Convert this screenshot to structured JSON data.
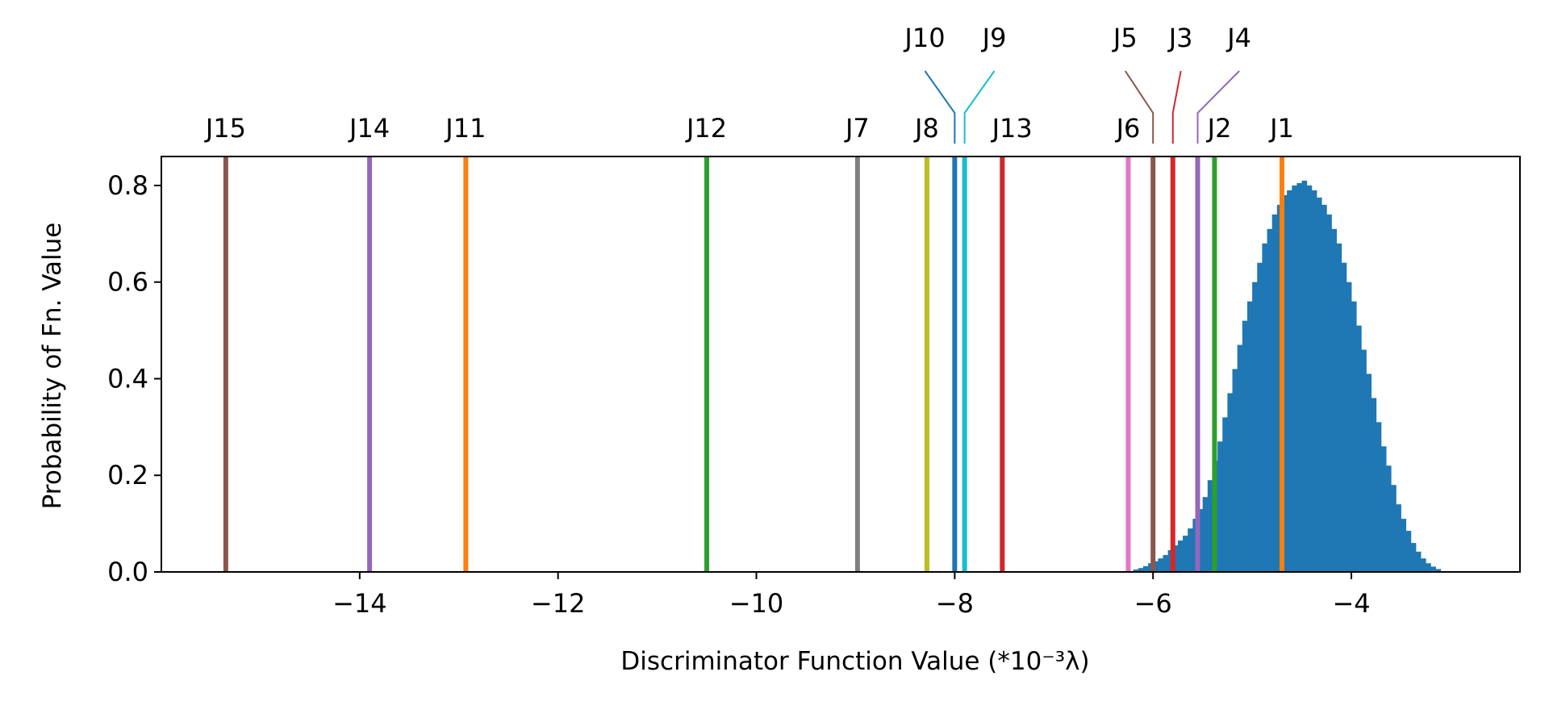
{
  "chart_data": {
    "type": "bar",
    "xlabel": "Discriminator Function Value  (*10⁻³λ)",
    "ylabel": "Probability of Fn. Value",
    "xlim": [
      -16.0,
      -2.3
    ],
    "ylim": [
      0.0,
      0.86
    ],
    "xticks": [
      -14,
      -12,
      -10,
      -8,
      -6,
      -4
    ],
    "xtick_labels": [
      "−14",
      "−12",
      "−10",
      "−8",
      "−6",
      "−4"
    ],
    "yticks": [
      0.0,
      0.2,
      0.4,
      0.6,
      0.8
    ],
    "ytick_labels": [
      "0.0",
      "0.2",
      "0.4",
      "0.6",
      "0.8"
    ],
    "grid": false,
    "histogram": {
      "color": "#1f77b4",
      "bin_width": 0.05,
      "bins": [
        [
          -6.2,
          0.005
        ],
        [
          -6.15,
          0.008
        ],
        [
          -6.1,
          0.012
        ],
        [
          -6.05,
          0.018
        ],
        [
          -6.0,
          0.022
        ],
        [
          -5.95,
          0.028
        ],
        [
          -5.9,
          0.035
        ],
        [
          -5.85,
          0.045
        ],
        [
          -5.8,
          0.055
        ],
        [
          -5.75,
          0.065
        ],
        [
          -5.7,
          0.075
        ],
        [
          -5.65,
          0.09
        ],
        [
          -5.6,
          0.11
        ],
        [
          -5.55,
          0.13
        ],
        [
          -5.5,
          0.155
        ],
        [
          -5.45,
          0.19
        ],
        [
          -5.4,
          0.23
        ],
        [
          -5.35,
          0.27
        ],
        [
          -5.3,
          0.32
        ],
        [
          -5.25,
          0.37
        ],
        [
          -5.2,
          0.42
        ],
        [
          -5.15,
          0.47
        ],
        [
          -5.1,
          0.52
        ],
        [
          -5.05,
          0.56
        ],
        [
          -5.0,
          0.6
        ],
        [
          -4.95,
          0.64
        ],
        [
          -4.9,
          0.68
        ],
        [
          -4.85,
          0.71
        ],
        [
          -4.8,
          0.74
        ],
        [
          -4.75,
          0.76
        ],
        [
          -4.7,
          0.78
        ],
        [
          -4.65,
          0.79
        ],
        [
          -4.6,
          0.8
        ],
        [
          -4.55,
          0.805
        ],
        [
          -4.5,
          0.81
        ],
        [
          -4.45,
          0.8
        ],
        [
          -4.4,
          0.79
        ],
        [
          -4.35,
          0.775
        ],
        [
          -4.3,
          0.76
        ],
        [
          -4.25,
          0.74
        ],
        [
          -4.2,
          0.71
        ],
        [
          -4.15,
          0.68
        ],
        [
          -4.1,
          0.64
        ],
        [
          -4.05,
          0.6
        ],
        [
          -4.0,
          0.56
        ],
        [
          -3.95,
          0.51
        ],
        [
          -3.9,
          0.46
        ],
        [
          -3.85,
          0.41
        ],
        [
          -3.8,
          0.36
        ],
        [
          -3.75,
          0.31
        ],
        [
          -3.7,
          0.26
        ],
        [
          -3.65,
          0.22
        ],
        [
          -3.6,
          0.18
        ],
        [
          -3.55,
          0.14
        ],
        [
          -3.5,
          0.11
        ],
        [
          -3.45,
          0.085
        ],
        [
          -3.4,
          0.06
        ],
        [
          -3.35,
          0.042
        ],
        [
          -3.3,
          0.028
        ],
        [
          -3.25,
          0.018
        ],
        [
          -3.2,
          0.011
        ],
        [
          -3.15,
          0.006
        ]
      ]
    },
    "markers": [
      {
        "label": "J15",
        "x": -15.35,
        "color": "#8c564b",
        "leader": false
      },
      {
        "label": "J14",
        "x": -13.9,
        "color": "#9467bd",
        "leader": false
      },
      {
        "label": "J11",
        "x": -12.93,
        "color": "#ff7f0e",
        "leader": false
      },
      {
        "label": "J12",
        "x": -10.5,
        "color": "#2ca02c",
        "leader": false
      },
      {
        "label": "J7",
        "x": -8.98,
        "color": "#7f7f7f",
        "leader": false
      },
      {
        "label": "J8",
        "x": -8.28,
        "color": "#bcbd22",
        "leader": false
      },
      {
        "label": "J10",
        "x": -8.0,
        "color": "#1f77b4",
        "leader": true,
        "label_x": -8.3
      },
      {
        "label": "J9",
        "x": -7.9,
        "color": "#17becf",
        "leader": true,
        "label_x": -7.6
      },
      {
        "label": "J13",
        "x": -7.52,
        "color": "#d62728",
        "leader": false,
        "label_offset": 0.1
      },
      {
        "label": "J6",
        "x": -6.25,
        "color": "#e377c2",
        "leader": false
      },
      {
        "label": "J5",
        "x": -6.0,
        "color": "#8c564b",
        "leader": true,
        "label_x": -6.28
      },
      {
        "label": "J3",
        "x": -5.8,
        "color": "#d62728",
        "leader": true,
        "label_x": -5.72
      },
      {
        "label": "J4",
        "x": -5.55,
        "color": "#9467bd",
        "leader": true,
        "label_x": -5.13
      },
      {
        "label": "J2",
        "x": -5.38,
        "color": "#2ca02c",
        "leader": false,
        "label_offset": 0.05
      },
      {
        "label": "J1",
        "x": -4.7,
        "color": "#ff7f0e",
        "leader": false
      }
    ]
  }
}
